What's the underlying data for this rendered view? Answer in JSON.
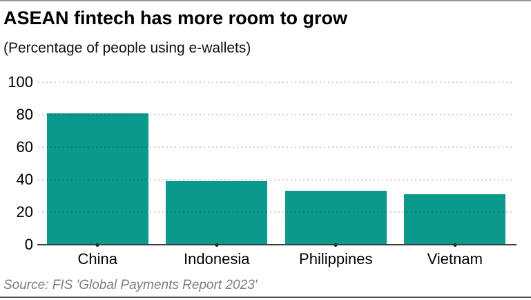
{
  "page": {
    "title": "ASEAN fintech has more room to grow",
    "subtitle": "(Percentage of people using e-wallets)",
    "source": "Source: FIS 'Global Payments Report 2023'"
  },
  "chart_data": {
    "type": "bar",
    "title": "ASEAN fintech has more room to grow",
    "subtitle": "(Percentage of people using e-wallets)",
    "categories": [
      "China",
      "Indonesia",
      "Philippines",
      "Vietnam"
    ],
    "values": [
      81,
      39,
      33,
      31
    ],
    "xlabel": "",
    "ylabel": "",
    "ylim": [
      0,
      100
    ],
    "yticks": [
      0,
      20,
      40,
      60,
      80,
      100
    ],
    "grid": "horizontal-dotted",
    "legend": "none",
    "bar_color": "#0a998c",
    "axis_line_color": "#3c3c3c",
    "source": "Source: FIS 'Global Payments Report 2023'"
  }
}
